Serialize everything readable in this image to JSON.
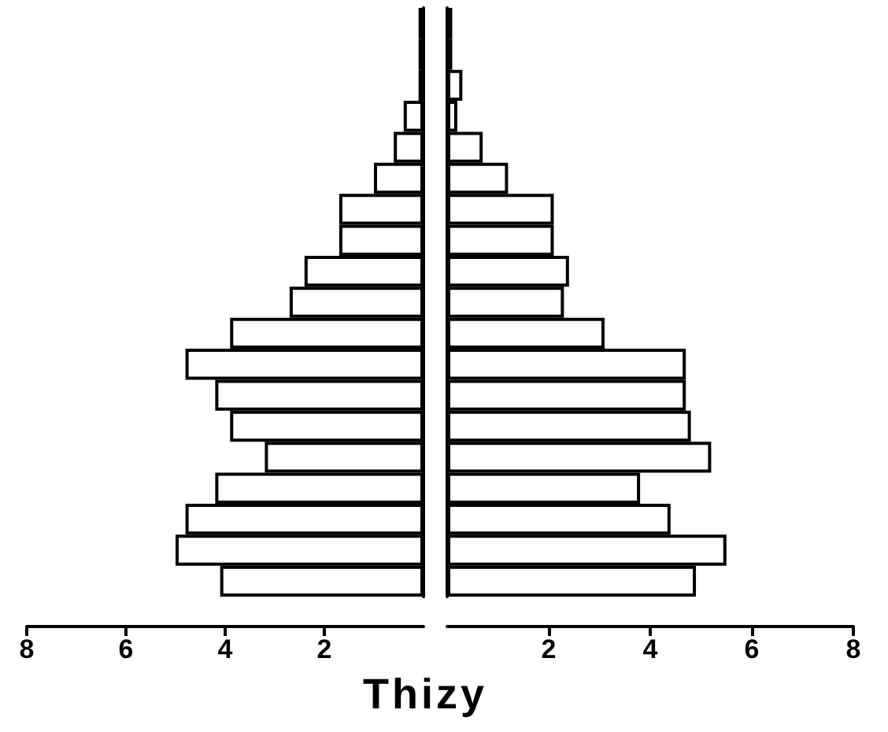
{
  "chart_data": [
    {
      "type": "bar",
      "orientation": "horizontal",
      "xlabel": "Thizy",
      "tick_labels": "x",
      "color": "#ffffff",
      "categories": [
        null,
        null,
        null,
        null,
        null,
        null,
        null,
        null,
        null,
        null,
        null,
        null,
        null,
        null,
        null,
        null,
        null,
        null,
        null
      ],
      "values": [
        0.1,
        0.1,
        0.1,
        0.4,
        0.6,
        1.0,
        1.7,
        1.7,
        2.4,
        2.7,
        3.9,
        4.8,
        4.2,
        3.9,
        3.2,
        4.2,
        4.8,
        5.0,
        4.1
      ],
      "xlim": [
        8,
        0
      ],
      "xticks": [
        8,
        6,
        4,
        2
      ]
    },
    {
      "type": "bar",
      "orientation": "horizontal",
      "tick_labels": "x",
      "color": "#ffffff",
      "categories": [
        null,
        null,
        null,
        null,
        null,
        null,
        null,
        null,
        null,
        null,
        null,
        null,
        null,
        null,
        null,
        null,
        null,
        null,
        null
      ],
      "values": [
        0.1,
        0.1,
        0.3,
        0.2,
        0.7,
        1.2,
        2.1,
        2.1,
        2.4,
        2.3,
        3.1,
        4.7,
        4.7,
        4.8,
        5.2,
        3.8,
        4.4,
        5.5,
        4.9
      ],
      "xlim": [
        0,
        8
      ],
      "xticks": [
        2,
        4,
        6,
        8
      ]
    }
  ]
}
